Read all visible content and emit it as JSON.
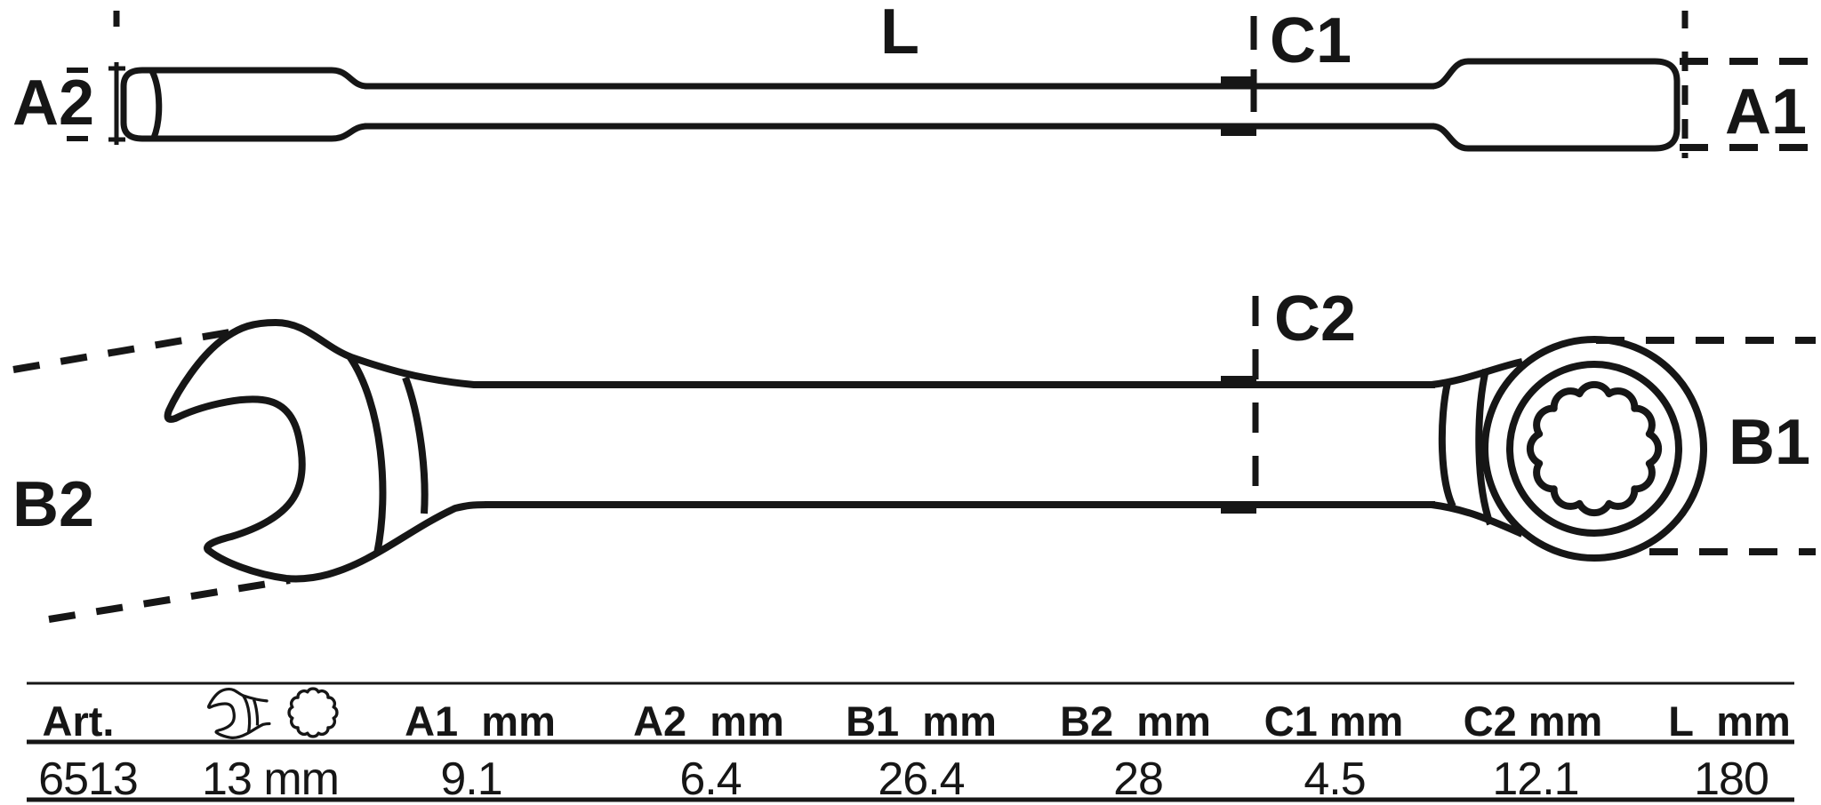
{
  "drawing": {
    "title": "combination-ratchet-wrench-technical-drawing",
    "line_color": "#161616",
    "labels": {
      "length": "L",
      "c1": "C1",
      "a1": "A1",
      "a2": "A2",
      "c2": "C2",
      "b1": "B1",
      "b2": "B2"
    },
    "icons": [
      "open-end-wrench-icon",
      "twelve-point-ring-icon"
    ]
  },
  "table": {
    "headers": {
      "art": "Art.",
      "a1": "A1  mm",
      "a2": "A2  mm",
      "b1": "B1  mm",
      "b2": "B2  mm",
      "c1": "C1 mm",
      "c2": "C2 mm",
      "l": "L  mm"
    },
    "row": {
      "art": "6513",
      "size": "13 mm",
      "a1": "9.1",
      "a2": "6.4",
      "b1": "26.4",
      "b2": "28",
      "c1": "4.5",
      "c2": "12.1",
      "l": "180"
    }
  }
}
